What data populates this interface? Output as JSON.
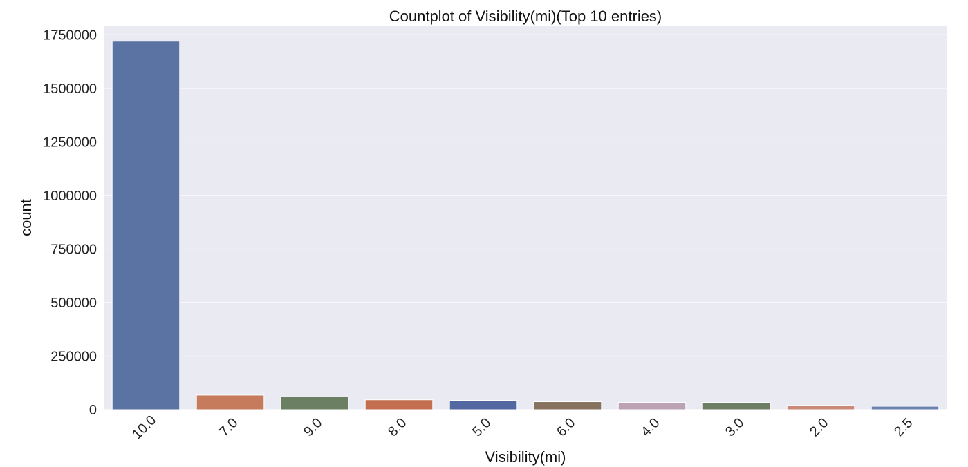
{
  "chart_data": {
    "type": "bar",
    "title": "Countplot of Visibility(mi)(Top 10 entries)",
    "xlabel": "Visibility(mi)",
    "ylabel": "count",
    "categories": [
      "10.0",
      "7.0",
      "9.0",
      "8.0",
      "5.0",
      "6.0",
      "4.0",
      "3.0",
      "2.0",
      "2.5"
    ],
    "values": [
      1720000,
      68000,
      60000,
      46000,
      43000,
      37000,
      34000,
      33000,
      20000,
      16000
    ],
    "yticks": [
      "0",
      "250000",
      "500000",
      "750000",
      "1000000",
      "1250000",
      "1500000",
      "1750000"
    ],
    "ylim": [
      0,
      1790000
    ],
    "grid": true,
    "background_color": "#eaeaf2",
    "grid_color": "#ffffff",
    "colors": [
      "#5975a4",
      "#cc8963",
      "#5f9e6e",
      "#b55d60",
      "#857aab",
      "#8d7866",
      "#d095bf",
      "#8c8c8c",
      "#c1b37f",
      "#64b5cd"
    ],
    "desaturated_colors": [
      "#5a73a2",
      "#c57b5c",
      "#6b7f62",
      "#c36e4e",
      "#5368a1",
      "#86725e",
      "#bba3b3",
      "#6d7e65",
      "#cb8a77",
      "#6a82b0"
    ]
  }
}
